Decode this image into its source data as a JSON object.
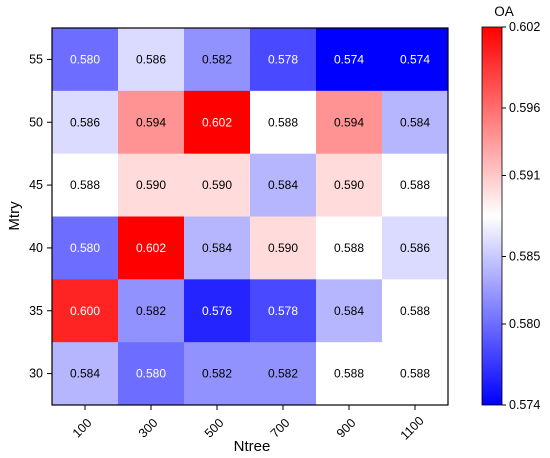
{
  "chart_data": {
    "type": "heatmap",
    "xlabel": "Ntree",
    "ylabel": "Mtry",
    "x_categories": [
      "100",
      "300",
      "500",
      "700",
      "900",
      "1100"
    ],
    "y_categories": [
      "55",
      "50",
      "45",
      "40",
      "35",
      "30"
    ],
    "values": [
      [
        0.58,
        0.586,
        0.582,
        0.578,
        0.574,
        0.574
      ],
      [
        0.586,
        0.594,
        0.602,
        0.588,
        0.594,
        0.584
      ],
      [
        0.588,
        0.59,
        0.59,
        0.584,
        0.59,
        0.588
      ],
      [
        0.58,
        0.602,
        0.584,
        0.59,
        0.588,
        0.586
      ],
      [
        0.6,
        0.582,
        0.576,
        0.578,
        0.584,
        0.588
      ],
      [
        0.584,
        0.58,
        0.582,
        0.582,
        0.588,
        0.588
      ]
    ],
    "cell_labels": [
      [
        "0.580",
        "0.586",
        "0.582",
        "0.578",
        "0.574",
        "0.574"
      ],
      [
        "0.586",
        "0.594",
        "0.602",
        "0.588",
        "0.594",
        "0.584"
      ],
      [
        "0.588",
        "0.590",
        "0.590",
        "0.584",
        "0.590",
        "0.588"
      ],
      [
        "0.580",
        "0.602",
        "0.584",
        "0.590",
        "0.588",
        "0.586"
      ],
      [
        "0.600",
        "0.582",
        "0.576",
        "0.578",
        "0.584",
        "0.588"
      ],
      [
        "0.584",
        "0.580",
        "0.582",
        "0.582",
        "0.588",
        "0.588"
      ]
    ],
    "colorbar": {
      "title": "OA",
      "range": [
        0.574,
        0.602
      ],
      "ticks": [
        0.602,
        0.596,
        0.591,
        0.585,
        0.58,
        0.574
      ],
      "tick_labels": [
        "0.602",
        "0.596",
        "0.591",
        "0.585",
        "0.580",
        "0.574"
      ],
      "colors": {
        "low": "#0000ff",
        "mid": "#ffffff",
        "high": "#ff0000"
      }
    }
  }
}
